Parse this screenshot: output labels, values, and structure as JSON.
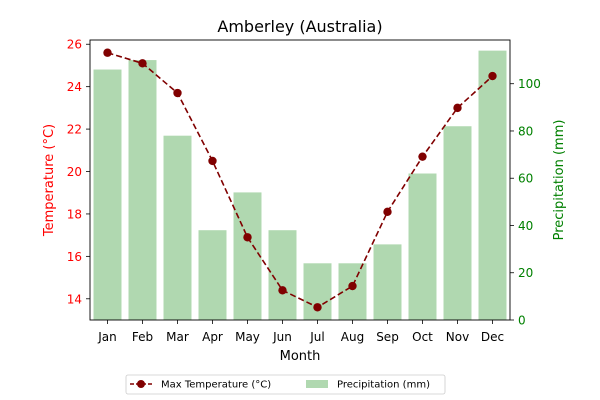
{
  "chart_data": {
    "type": "bar+line",
    "title": "Amberley (Australia)",
    "xlabel": "Month",
    "categories": [
      "Jan",
      "Feb",
      "Mar",
      "Apr",
      "May",
      "Jun",
      "Jul",
      "Aug",
      "Sep",
      "Oct",
      "Nov",
      "Dec"
    ],
    "left_axis": {
      "label": "Temperature (°C)",
      "color": "#ff0000",
      "ylim": [
        13.0,
        26.2
      ],
      "ticks": [
        14,
        16,
        18,
        20,
        22,
        24,
        26
      ]
    },
    "right_axis": {
      "label": "Precipitation (mm)",
      "color": "#008000",
      "ylim": [
        0,
        118.5
      ],
      "ticks": [
        0,
        20,
        40,
        60,
        80,
        100
      ]
    },
    "series": [
      {
        "name": "Max Temperature (°C)",
        "type": "line",
        "axis": "left",
        "color": "#800000",
        "style": "dashed",
        "marker": "circle",
        "values": [
          25.6,
          25.1,
          23.7,
          20.5,
          16.9,
          14.4,
          13.6,
          14.6,
          18.1,
          20.7,
          23.0,
          24.5
        ]
      },
      {
        "name": "Precipitation (mm)",
        "type": "bar",
        "axis": "right",
        "color": "#b0d8b0",
        "values": [
          106,
          110,
          78,
          38,
          54,
          38,
          24,
          24,
          32,
          62,
          82,
          114
        ]
      }
    ],
    "legend": {
      "position": "bottom-center",
      "columns": 2,
      "entries": [
        "Max Temperature (°C)",
        "Precipitation (mm)"
      ]
    },
    "grid": false
  }
}
